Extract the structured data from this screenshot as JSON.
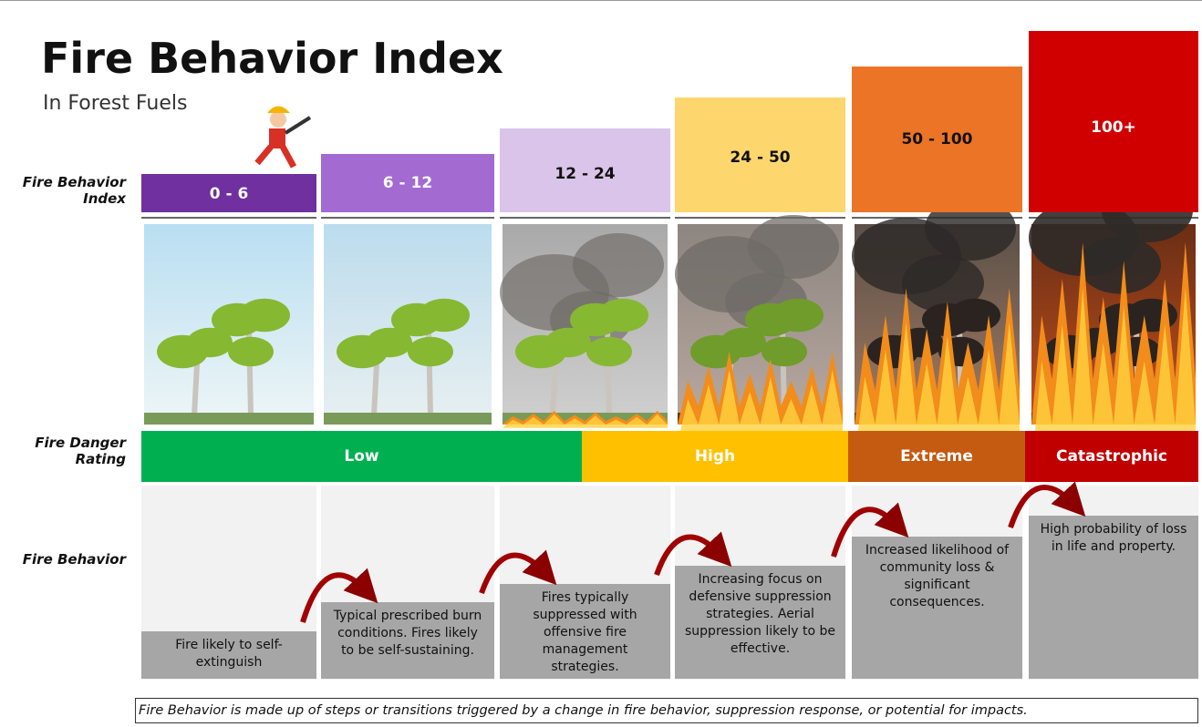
{
  "header": {
    "title": "Fire Behavior Index",
    "subtitle": "In Forest Fuels"
  },
  "row_labels": {
    "index": "Fire Behavior Index",
    "rating": "Fire Danger Rating",
    "behavior": "Fire Behavior"
  },
  "columns": [
    {
      "index": "0 - 6",
      "behavior": "Fire likely to self-extinguish"
    },
    {
      "index": "6 - 12",
      "behavior": "Typical prescribed burn conditions. Fires likely to be self-sustaining."
    },
    {
      "index": "12 - 24",
      "behavior": "Fires typically suppressed with offensive fire management strategies."
    },
    {
      "index": "24 - 50",
      "behavior": "Increasing focus on defensive suppression strategies. Aerial suppression likely to be effective."
    },
    {
      "index": "50 - 100",
      "behavior": "Increased likelihood of community loss & significant consequences."
    },
    {
      "index": "100+",
      "behavior": "High probability of loss in life and property."
    }
  ],
  "ratings": [
    "Low",
    "High",
    "Extreme",
    "Catastrophic"
  ],
  "footnote": "Fire Behavior is made up of steps or transitions triggered by a change in fire behavior, suppression response, or potential for impacts."
}
